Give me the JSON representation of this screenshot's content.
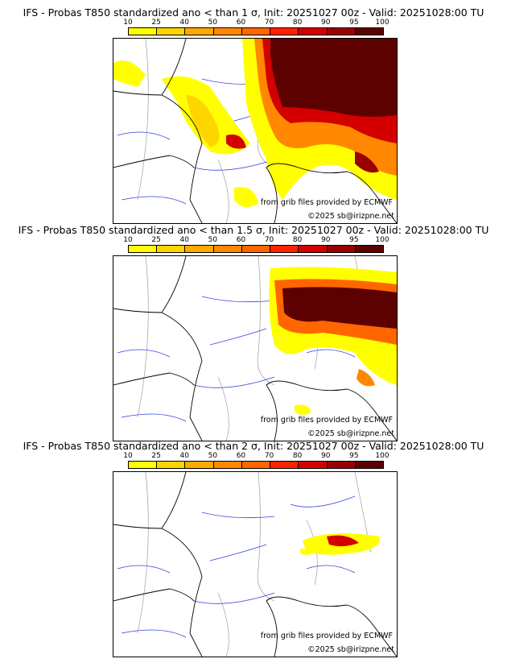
{
  "panels": [
    {
      "title": "IFS - Probas T850  standardized ano < than 1 σ, Init: 20251027 00z - Valid: 20251028:00 TU"
    },
    {
      "title": "IFS - Probas T850  standardized ano < than 1.5 σ, Init: 20251027 00z - Valid: 20251028:00 TU"
    },
    {
      "title": "IFS - Probas T850  standardized ano < than 2 σ, Init: 20251027 00z - Valid: 20251028:00 TU"
    }
  ],
  "colorbar": {
    "ticks": [
      "10",
      "25",
      "40",
      "50",
      "60",
      "70",
      "80",
      "90",
      "95",
      "100"
    ],
    "colors": [
      "#ffff00",
      "#ffd500",
      "#ffaa00",
      "#ff8800",
      "#ff6600",
      "#ff2200",
      "#d40000",
      "#990000",
      "#5c0000"
    ]
  },
  "credits": {
    "source": "from grib files provided by ECMWF",
    "copyright": "©2025 sb@irizpne.net"
  }
}
